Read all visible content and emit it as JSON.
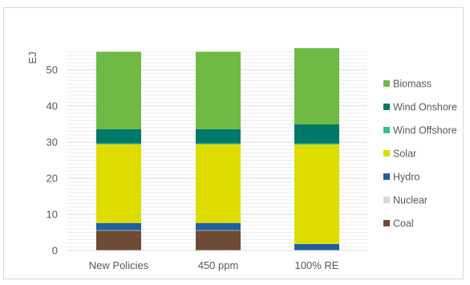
{
  "chart_data": {
    "type": "bar",
    "stacked": true,
    "categories": [
      "New Policies",
      "450 ppm",
      "100% RE"
    ],
    "ylabel": "EJ",
    "xlabel": "",
    "title": "",
    "ylim": [
      0,
      55
    ],
    "yticks": [
      0,
      10,
      20,
      30,
      40,
      50
    ],
    "grid": true,
    "legend_position": "right",
    "series": [
      {
        "name": "Coal",
        "color": "#6e4b34",
        "values": [
          5.5,
          5.5,
          0
        ]
      },
      {
        "name": "Nuclear",
        "color": "#d9d9d9",
        "values": [
          0.1,
          0.1,
          0
        ]
      },
      {
        "name": "Hydro",
        "color": "#1f5fa0",
        "values": [
          2.0,
          2.0,
          1.8
        ]
      },
      {
        "name": "Solar",
        "color": "#dfdc00",
        "values": [
          21.8,
          21.8,
          27.5
        ]
      },
      {
        "name": "Wind Offshore",
        "color": "#35c08c",
        "values": [
          0.2,
          0.2,
          0.3
        ]
      },
      {
        "name": "Wind Onshore",
        "color": "#007a68",
        "values": [
          4.0,
          4.0,
          5.3
        ]
      },
      {
        "name": "Biomass",
        "color": "#70b944",
        "values": [
          21.4,
          21.4,
          21.1
        ]
      }
    ]
  }
}
